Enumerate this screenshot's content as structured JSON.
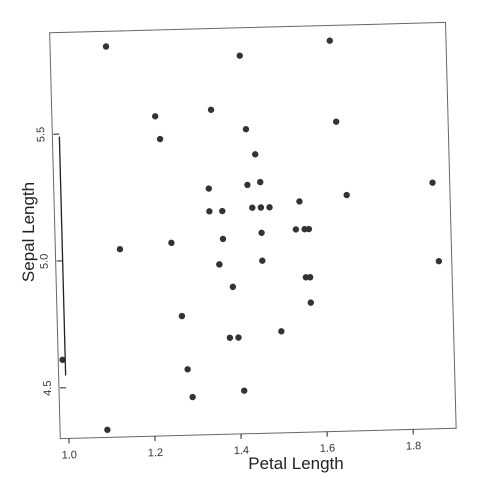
{
  "colors": {
    "point": "#333333",
    "frame": "#666666",
    "axis": "#222222"
  },
  "chart_data": {
    "type": "scatter",
    "title": "",
    "xlabel": "Petal Length",
    "ylabel": "Sepal Length",
    "xlim": [
      0.98,
      1.9
    ],
    "ylim": [
      4.3,
      5.9
    ],
    "x_ticks": [
      1.0,
      1.2,
      1.4,
      1.6,
      1.8
    ],
    "x_tick_labels": [
      "1.0",
      "1.2",
      "1.4",
      "1.6",
      "1.8"
    ],
    "y_ticks": [
      4.5,
      5.0,
      5.5
    ],
    "y_tick_labels": [
      "4.5",
      "5.0",
      "5.5"
    ],
    "grid": false,
    "x": [
      1.11,
      1.42,
      1.63,
      1.22,
      1.35,
      1.43,
      1.23,
      1.45,
      1.34,
      1.43,
      1.46,
      1.66,
      1.86,
      1.55,
      1.34,
      1.37,
      1.44,
      1.46,
      1.48,
      1.13,
      1.25,
      1.37,
      1.46,
      1.54,
      1.56,
      1.57,
      1.36,
      1.46,
      1.36,
      1.56,
      1.87,
      1.57,
      1.39,
      1.57,
      1.27,
      1.5,
      1.38,
      1.4,
      0.99,
      1.28,
      1.29,
      1.41,
      1.09,
      1.64
    ],
    "y": [
      5.84,
      5.79,
      5.84,
      5.56,
      5.58,
      5.5,
      5.47,
      5.4,
      5.27,
      5.28,
      5.29,
      5.23,
      5.27,
      5.21,
      5.18,
      5.18,
      5.19,
      5.19,
      5.19,
      5.04,
      5.06,
      5.07,
      5.09,
      5.1,
      5.1,
      5.1,
      4.97,
      4.98,
      4.97,
      4.91,
      4.96,
      4.91,
      4.88,
      4.81,
      4.77,
      4.7,
      4.68,
      4.68,
      4.61,
      4.56,
      4.45,
      4.47,
      4.33,
      5.52
    ]
  }
}
